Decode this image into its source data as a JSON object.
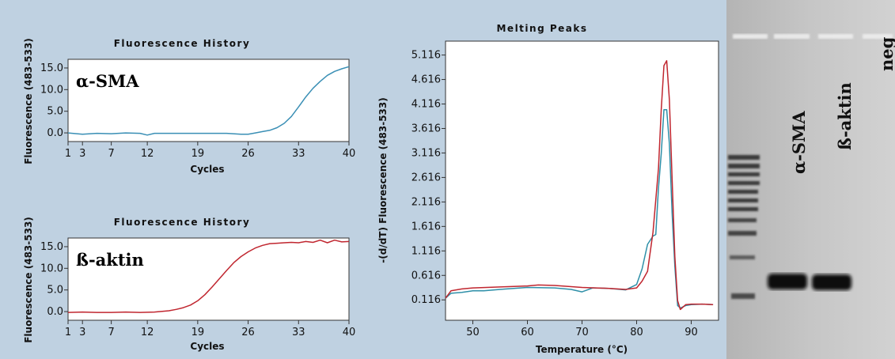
{
  "chart_data": [
    {
      "type": "line",
      "title": "Fluorescence History",
      "xlabel": "Cycles",
      "ylabel": "Fluorescence (483-533)",
      "overlay_label": "α-SMA",
      "xticks": [
        "1",
        "3",
        "7",
        "12",
        "19",
        "26",
        "33",
        "40"
      ],
      "yticks": [
        "0.0",
        "5.0",
        "10.0",
        "15.0"
      ],
      "xlim": [
        1,
        40
      ],
      "ylim": [
        -2,
        17
      ],
      "series": [
        {
          "color": "#3a8fb5",
          "x": [
            1,
            3,
            5,
            7,
            9,
            11,
            12,
            13,
            15,
            17,
            19,
            21,
            23,
            25,
            26,
            27,
            28,
            29,
            30,
            31,
            32,
            33,
            34,
            35,
            36,
            37,
            38,
            39,
            40
          ],
          "y": [
            0.0,
            -0.3,
            -0.1,
            -0.2,
            0.0,
            -0.1,
            -0.5,
            -0.1,
            -0.1,
            -0.1,
            -0.1,
            -0.1,
            -0.1,
            -0.3,
            -0.3,
            0.0,
            0.3,
            0.6,
            1.2,
            2.2,
            3.8,
            6.0,
            8.3,
            10.3,
            11.9,
            13.3,
            14.2,
            14.8,
            15.3
          ]
        }
      ]
    },
    {
      "type": "line",
      "title": "Fluorescence History",
      "xlabel": "Cycles",
      "ylabel": "Fluorescence (483-533)",
      "overlay_label": "ß-aktin",
      "xticks": [
        "1",
        "3",
        "7",
        "12",
        "19",
        "26",
        "33",
        "40"
      ],
      "yticks": [
        "0.0",
        "5.0",
        "10.0",
        "15.0"
      ],
      "xlim": [
        1,
        40
      ],
      "ylim": [
        -2,
        17
      ],
      "series": [
        {
          "color": "#c0262f",
          "x": [
            1,
            3,
            5,
            7,
            9,
            11,
            13,
            15,
            16,
            17,
            18,
            19,
            20,
            21,
            22,
            23,
            24,
            25,
            26,
            27,
            28,
            29,
            30,
            31,
            32,
            33,
            34,
            35,
            36,
            37,
            38,
            39,
            40
          ],
          "y": [
            -0.2,
            -0.1,
            -0.2,
            -0.2,
            -0.1,
            -0.2,
            -0.1,
            0.2,
            0.5,
            0.9,
            1.5,
            2.5,
            3.9,
            5.7,
            7.6,
            9.5,
            11.3,
            12.7,
            13.8,
            14.7,
            15.3,
            15.7,
            15.8,
            15.9,
            16.0,
            15.9,
            16.2,
            16.0,
            16.5,
            15.9,
            16.5,
            16.1,
            16.2
          ]
        }
      ]
    },
    {
      "type": "line",
      "title": "Melting Peaks",
      "xlabel": "Temperature (°C)",
      "ylabel": "-(d/dT) Fluorescence (483-533)",
      "xticks": [
        "50",
        "60",
        "70",
        "80",
        "90"
      ],
      "yticks": [
        "0.116",
        "0.616",
        "1.116",
        "1.616",
        "2.116",
        "2.616",
        "3.116",
        "3.616",
        "4.116",
        "4.616",
        "5.116"
      ],
      "xlim": [
        45,
        95
      ],
      "ylim": [
        -0.3,
        5.4
      ],
      "series": [
        {
          "color": "#2e8fa8",
          "x": [
            45,
            46,
            48,
            50,
            52,
            55,
            60,
            65,
            68,
            70,
            72,
            75,
            78,
            80,
            81,
            82,
            83,
            83.5,
            84,
            84.5,
            85,
            85.5,
            86,
            86.5,
            87,
            87.5,
            88,
            89,
            90,
            92,
            94
          ],
          "y": [
            0.15,
            0.25,
            0.27,
            0.3,
            0.3,
            0.33,
            0.37,
            0.36,
            0.33,
            0.28,
            0.36,
            0.35,
            0.32,
            0.43,
            0.75,
            1.25,
            1.42,
            1.45,
            2.4,
            3.1,
            4.0,
            4.0,
            3.3,
            1.9,
            0.8,
            0.0,
            -0.05,
            0.0,
            0.02,
            0.03,
            0.02
          ]
        },
        {
          "color": "#c0262f",
          "x": [
            45,
            46,
            48,
            50,
            55,
            60,
            62,
            65,
            70,
            75,
            78,
            80,
            81,
            82,
            83,
            84,
            84.5,
            85,
            85.5,
            86,
            86.5,
            87,
            87.5,
            88,
            89,
            90,
            92,
            94
          ],
          "y": [
            0.15,
            0.3,
            0.34,
            0.36,
            0.38,
            0.4,
            0.42,
            0.41,
            0.37,
            0.35,
            0.33,
            0.36,
            0.5,
            0.7,
            1.5,
            2.8,
            4.0,
            4.9,
            5.0,
            4.2,
            2.6,
            1.0,
            0.1,
            -0.08,
            0.02,
            0.03,
            0.03,
            0.02
          ]
        }
      ]
    }
  ],
  "gel": {
    "lane_labels": [
      "α-SMA",
      "ß-aktin",
      "neg"
    ]
  }
}
